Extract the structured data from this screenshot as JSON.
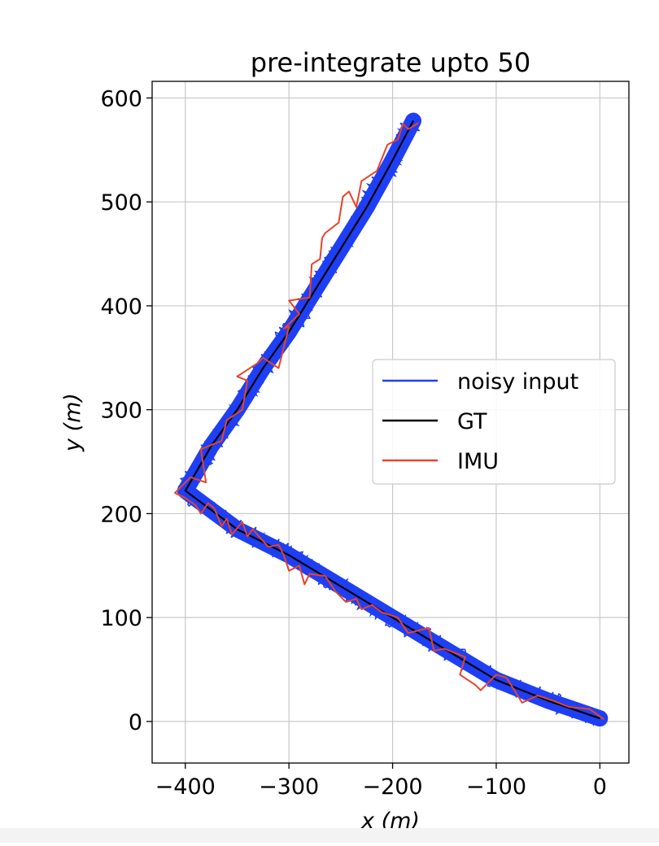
{
  "chart_data": {
    "type": "line",
    "title": "pre-integrate upto 50",
    "xlabel": "x (m)",
    "ylabel": "y (m)",
    "xlim": [
      -432,
      28
    ],
    "ylim": [
      -40,
      616
    ],
    "xticks": [
      -400,
      -300,
      -200,
      -100,
      0
    ],
    "yticks": [
      0,
      100,
      200,
      300,
      400,
      500,
      600
    ],
    "xtick_labels": [
      "−400",
      "−300",
      "−200",
      "−100",
      "0"
    ],
    "ytick_labels": [
      "0",
      "100",
      "200",
      "300",
      "400",
      "500",
      "600"
    ],
    "grid": true,
    "legend_position": "center-right",
    "series": [
      {
        "name": "noisy input",
        "color": "#1f3ff5",
        "style": "noisy-band",
        "x": [
          0,
          -50,
          -100,
          -150,
          -200,
          -250,
          -300,
          -350,
          -400,
          -375,
          -350,
          -325,
          -300,
          -275,
          -250,
          -225,
          -200,
          -180
        ],
        "y": [
          3,
          20,
          40,
          70,
          100,
          130,
          160,
          185,
          222,
          265,
          300,
          340,
          375,
          415,
          455,
          495,
          540,
          578
        ]
      },
      {
        "name": "GT",
        "color": "#000000",
        "style": "line",
        "x": [
          0,
          -50,
          -100,
          -150,
          -200,
          -250,
          -300,
          -350,
          -400,
          -375,
          -350,
          -325,
          -300,
          -275,
          -250,
          -225,
          -200,
          -180
        ],
        "y": [
          3,
          20,
          40,
          70,
          100,
          130,
          160,
          185,
          222,
          265,
          300,
          340,
          375,
          415,
          455,
          495,
          540,
          578
        ]
      },
      {
        "name": "IMU",
        "color": "#e8432a",
        "style": "line",
        "x": [
          4,
          -10,
          -30,
          -45,
          -60,
          -75,
          -90,
          -100,
          -115,
          -120,
          -135,
          -130,
          -150,
          -160,
          -165,
          -185,
          -195,
          -210,
          -220,
          -230,
          -235,
          -245,
          -255,
          -265,
          -280,
          -285,
          -290,
          -300,
          -305,
          -310,
          -320,
          -335,
          -340,
          -345,
          -355,
          -360,
          -365,
          -372,
          -378,
          -385,
          -390,
          -400,
          -410,
          -395,
          -380,
          -385,
          -365,
          -360,
          -345,
          -340,
          -350,
          -330,
          -325,
          -310,
          -300,
          -305,
          -290,
          -300,
          -280,
          -278,
          -270,
          -268,
          -265,
          -252,
          -248,
          -242,
          -235,
          -230,
          -215,
          -205,
          -195,
          -190,
          -185,
          -175
        ],
        "y": [
          2,
          12,
          14,
          20,
          25,
          18,
          42,
          45,
          30,
          35,
          45,
          62,
          70,
          68,
          90,
          85,
          100,
          105,
          112,
          108,
          118,
          115,
          125,
          140,
          142,
          132,
          150,
          145,
          160,
          170,
          168,
          185,
          178,
          192,
          180,
          195,
          188,
          205,
          210,
          200,
          208,
          215,
          220,
          235,
          230,
          262,
          270,
          290,
          300,
          328,
          332,
          345,
          350,
          340,
          380,
          378,
          392,
          405,
          408,
          440,
          445,
          465,
          470,
          480,
          505,
          510,
          495,
          520,
          530,
          555,
          560,
          575,
          570,
          576
        ]
      }
    ]
  }
}
